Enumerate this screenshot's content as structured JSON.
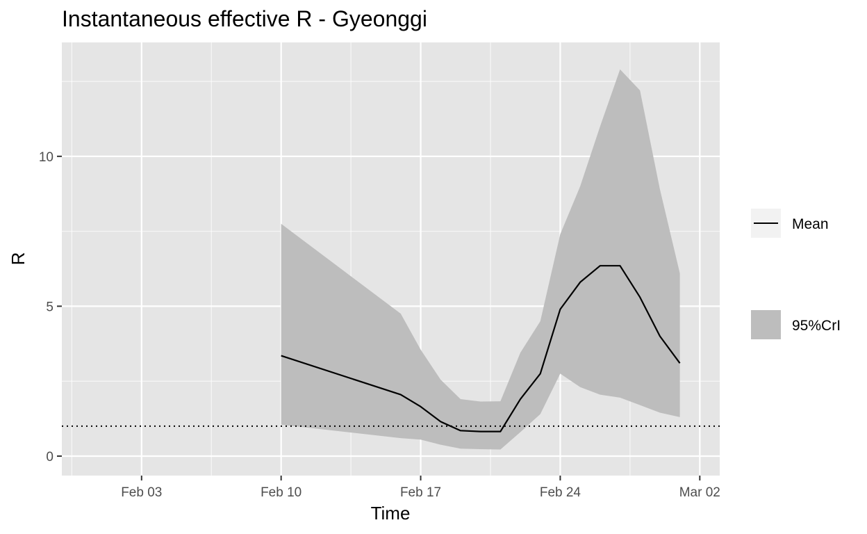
{
  "chart_data": {
    "type": "line",
    "title": "Instantaneous effective R -  Gyeonggi",
    "xlabel": "Time",
    "ylabel": "R",
    "x_ticks": [
      "Feb 03",
      "Feb 10",
      "Feb 17",
      "Feb 24",
      "Mar 02"
    ],
    "x_tick_dates": [
      "2020-02-03",
      "2020-02-10",
      "2020-02-17",
      "2020-02-24",
      "2020-03-02"
    ],
    "y_ticks": [
      0,
      5,
      10
    ],
    "xlim": [
      "2020-01-30",
      "2020-03-03"
    ],
    "ylim": [
      -0.65,
      13.8
    ],
    "grid": true,
    "legend_position": "right",
    "reference_line": {
      "y": 1,
      "style": "dotted"
    },
    "series": [
      {
        "name": "Mean",
        "type": "line",
        "color": "#000000",
        "x": [
          "2020-02-10",
          "2020-02-16",
          "2020-02-17",
          "2020-02-18",
          "2020-02-19",
          "2020-02-20",
          "2020-02-21",
          "2020-02-22",
          "2020-02-23",
          "2020-02-24",
          "2020-02-25",
          "2020-02-26",
          "2020-02-27",
          "2020-02-28",
          "2020-02-29",
          "2020-03-01"
        ],
        "y": [
          3.35,
          2.05,
          1.65,
          1.15,
          0.85,
          0.82,
          0.82,
          1.9,
          2.75,
          4.9,
          5.8,
          6.35,
          6.35,
          5.3,
          4.0,
          3.1
        ]
      },
      {
        "name": "95%CrI",
        "type": "ribbon",
        "color": "#bdbdbd",
        "x": [
          "2020-02-10",
          "2020-02-16",
          "2020-02-17",
          "2020-02-18",
          "2020-02-19",
          "2020-02-20",
          "2020-02-21",
          "2020-02-22",
          "2020-02-23",
          "2020-02-24",
          "2020-02-25",
          "2020-02-26",
          "2020-02-27",
          "2020-02-28",
          "2020-02-29",
          "2020-03-01"
        ],
        "lower": [
          1.05,
          0.6,
          0.55,
          0.38,
          0.25,
          0.23,
          0.22,
          0.8,
          1.4,
          2.75,
          2.3,
          2.05,
          1.95,
          1.7,
          1.45,
          1.3
        ],
        "upper": [
          7.75,
          4.75,
          3.55,
          2.55,
          1.9,
          1.82,
          1.83,
          3.45,
          4.5,
          7.4,
          9.0,
          11.0,
          12.9,
          12.2,
          8.9,
          6.1
        ]
      }
    ]
  },
  "legend": {
    "items": [
      {
        "label": "Mean",
        "kind": "line"
      },
      {
        "label": "95%CrI",
        "kind": "fill"
      }
    ]
  },
  "colors": {
    "panel_background": "#e5e5e5",
    "grid": "#ffffff",
    "ribbon": "#bdbdbd",
    "line": "#000000"
  }
}
